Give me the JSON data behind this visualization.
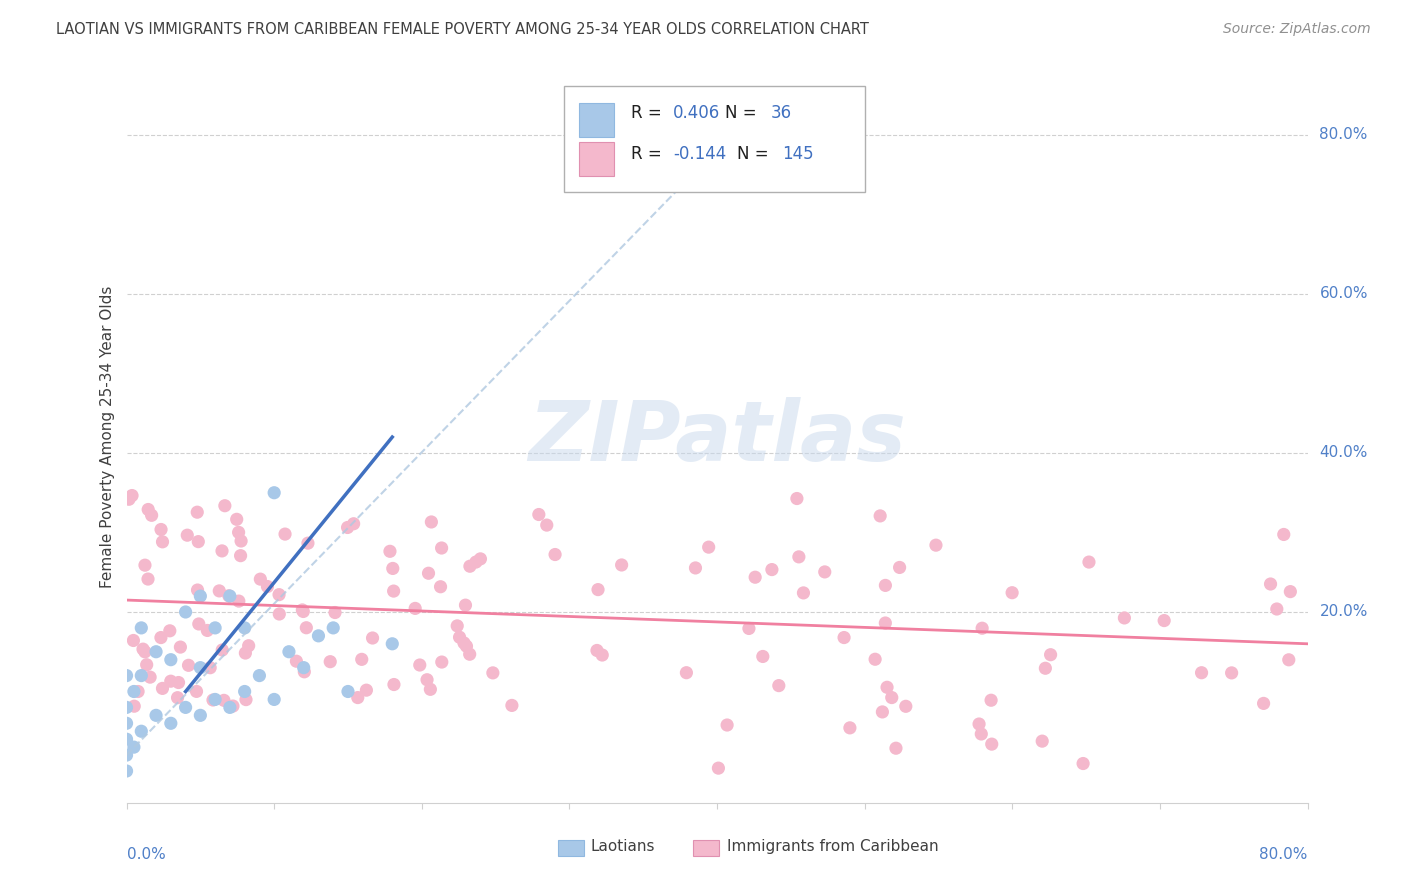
{
  "title": "LAOTIAN VS IMMIGRANTS FROM CARIBBEAN FEMALE POVERTY AMONG 25-34 YEAR OLDS CORRELATION CHART",
  "source": "Source: ZipAtlas.com",
  "ylabel": "Female Poverty Among 25-34 Year Olds",
  "ytick_values": [
    0.0,
    0.2,
    0.4,
    0.6,
    0.8
  ],
  "ytick_labels": [
    "",
    "20.0%",
    "40.0%",
    "60.0%",
    "80.0%"
  ],
  "xtick_label_left": "0.0%",
  "xtick_label_right": "80.0%",
  "xlim": [
    0.0,
    0.8
  ],
  "ylim": [
    -0.04,
    0.88
  ],
  "laotian_color": "#a8c8e8",
  "caribbean_color": "#f4b8cc",
  "laotian_line_color": "#4070c0",
  "caribbean_line_color": "#f080a0",
  "laotian_dashed_color": "#b0c8e0",
  "grid_color": "#d0d0d0",
  "title_color": "#404040",
  "tick_label_color": "#5080c8",
  "ylabel_color": "#404040",
  "watermark_color": "#c8d8ec",
  "background": "#ffffff",
  "legend_box_color": "#ffffff",
  "legend_border_color": "#b0b0b0",
  "legend_text_color": "#202020",
  "legend_value_color": "#4070c0",
  "source_color": "#909090",
  "laotian_r": "0.406",
  "laotian_n": "36",
  "caribbean_r": "-0.144",
  "caribbean_n": "145"
}
